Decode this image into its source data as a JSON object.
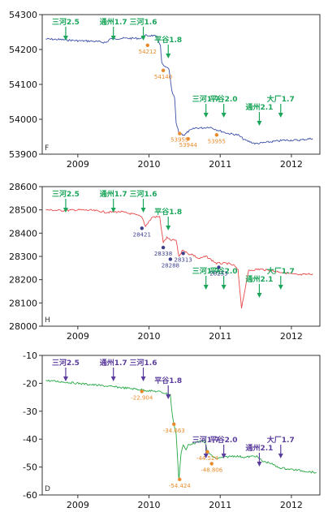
{
  "chart_data": [
    {
      "type": "line",
      "panel_label": "F",
      "ylim": [
        53900,
        54300
      ],
      "yticks": [
        53900,
        54000,
        54100,
        54200,
        54300
      ],
      "xlim": [
        2008.5,
        2012.4
      ],
      "xticks": [
        2009,
        2010,
        2011,
        2012
      ],
      "line_color": "#3c4fa8",
      "event_color": "#1aa55a",
      "marker_color": "#e88a2a",
      "series": [
        {
          "x": [
            2008.55,
            2008.8,
            2009.0,
            2009.2,
            2009.4,
            2009.45,
            2009.6,
            2009.9,
            2009.95,
            2010.05,
            2010.12,
            2010.16,
            2010.18,
            2010.22,
            2010.28,
            2010.32,
            2010.36,
            2010.38,
            2010.42,
            2010.5,
            2010.55,
            2010.65,
            2010.75,
            2010.85,
            2010.95,
            2011.1,
            2011.25,
            2011.35,
            2011.5,
            2011.7,
            2011.9,
            2012.1,
            2012.3
          ],
          "y": [
            54230,
            54228,
            54225,
            54224,
            54220,
            54230,
            54232,
            54232,
            54240,
            54240,
            54235,
            54210,
            54160,
            54150,
            54145,
            54080,
            54060,
            53990,
            53960,
            53955,
            53965,
            53975,
            53975,
            53978,
            53970,
            53960,
            53955,
            53940,
            53930,
            53935,
            53940,
            53940,
            53945
          ]
        }
      ],
      "events": [
        {
          "label": "三河2.5",
          "x": 2008.83
        },
        {
          "label": "通州1.7",
          "x": 2009.5
        },
        {
          "label": "三河1.6",
          "x": 2009.92
        },
        {
          "label": "平谷1.8",
          "x": 2010.27
        },
        {
          "label": "三河1.7",
          "x": 2010.8
        },
        {
          "label": "平谷2.0",
          "x": 2011.05
        },
        {
          "label": "通州2.1",
          "x": 2011.55
        },
        {
          "label": "大厂1.7",
          "x": 2011.85
        }
      ],
      "markers": [
        {
          "label": "54212",
          "x": 2009.98,
          "y": 54212
        },
        {
          "label": "54140",
          "x": 2010.2,
          "y": 54140
        },
        {
          "label": "53959",
          "x": 2010.43,
          "y": 53959
        },
        {
          "label": "53944",
          "x": 2010.55,
          "y": 53944
        },
        {
          "label": "53955",
          "x": 2010.95,
          "y": 53955
        }
      ]
    },
    {
      "type": "line",
      "panel_label": "H",
      "ylim": [
        28000,
        28600
      ],
      "yticks": [
        28000,
        28100,
        28200,
        28300,
        28400,
        28500,
        28600
      ],
      "xlim": [
        2008.5,
        2012.4
      ],
      "xticks": [
        2009,
        2010,
        2011,
        2012
      ],
      "line_color": "#e84a4a",
      "event_color": "#1aa55a",
      "marker_color": "#3c3f8c",
      "series": [
        {
          "x": [
            2008.55,
            2008.8,
            2009.0,
            2009.2,
            2009.4,
            2009.6,
            2009.8,
            2009.9,
            2009.95,
            2010.05,
            2010.15,
            2010.2,
            2010.25,
            2010.3,
            2010.38,
            2010.42,
            2010.48,
            2010.55,
            2010.6,
            2010.7,
            2010.8,
            2010.95,
            2011.1,
            2011.2,
            2011.25,
            2011.3,
            2011.4,
            2011.55,
            2011.7,
            2011.9,
            2012.1,
            2012.3
          ],
          "y": [
            28500,
            28497,
            28500,
            28498,
            28490,
            28492,
            28480,
            28470,
            28430,
            28470,
            28470,
            28360,
            28380,
            28370,
            28370,
            28300,
            28330,
            28310,
            28310,
            28290,
            28300,
            28270,
            28270,
            28260,
            28240,
            28080,
            28240,
            28245,
            28240,
            28230,
            28220,
            28225
          ]
        }
      ],
      "events": [
        {
          "label": "三河2.5",
          "x": 2008.83
        },
        {
          "label": "通州1.7",
          "x": 2009.5
        },
        {
          "label": "三河1.6",
          "x": 2009.92
        },
        {
          "label": "平谷1.8",
          "x": 2010.27
        },
        {
          "label": "三河1.7",
          "x": 2010.8
        },
        {
          "label": "平谷2.0",
          "x": 2011.05
        },
        {
          "label": "通州2.1",
          "x": 2011.55
        },
        {
          "label": "大厂1.7",
          "x": 2011.85
        }
      ],
      "markers": [
        {
          "label": "28421",
          "x": 2009.9,
          "y": 28421
        },
        {
          "label": "28338",
          "x": 2010.2,
          "y": 28338
        },
        {
          "label": "28288",
          "x": 2010.3,
          "y": 28288
        },
        {
          "label": "28313",
          "x": 2010.48,
          "y": 28313
        },
        {
          "label": "28253",
          "x": 2010.98,
          "y": 28253
        }
      ]
    },
    {
      "type": "line",
      "panel_label": "D",
      "ylim": [
        -60,
        -10
      ],
      "yticks": [
        -60,
        -50,
        -40,
        -30,
        -20,
        -10
      ],
      "xlim": [
        2008.5,
        2012.4
      ],
      "xticks": [
        2009,
        2010,
        2011,
        2012
      ],
      "line_color": "#27a844",
      "event_color": "#5a3c9c",
      "marker_color": "#e88a2a",
      "series": [
        {
          "x": [
            2008.55,
            2008.8,
            2009.0,
            2009.2,
            2009.4,
            2009.6,
            2009.8,
            2009.95,
            2010.05,
            2010.15,
            2010.22,
            2010.3,
            2010.32,
            2010.35,
            2010.38,
            2010.42,
            2010.45,
            2010.48,
            2010.52,
            2010.55,
            2010.62,
            2010.7,
            2010.78,
            2010.82,
            2010.88,
            2010.95,
            2011.05,
            2011.2,
            2011.35,
            2011.5,
            2011.6,
            2011.7,
            2011.8,
            2011.9,
            2012.05,
            2012.2,
            2012.35
          ],
          "y": [
            -19,
            -19.5,
            -20,
            -20.5,
            -21,
            -21.5,
            -22,
            -22.5,
            -22.8,
            -23,
            -23.5,
            -24,
            -30,
            -34.6,
            -38,
            -54.5,
            -45,
            -42,
            -44,
            -42,
            -41.5,
            -41,
            -40.5,
            -44.5,
            -46,
            -47,
            -46.5,
            -46,
            -46.5,
            -46,
            -48,
            -48.5,
            -50,
            -50.5,
            -51,
            -51.5,
            -52
          ]
        }
      ],
      "events": [
        {
          "label": "三河2.5",
          "x": 2008.83
        },
        {
          "label": "通州1.7",
          "x": 2009.5
        },
        {
          "label": "三河1.6",
          "x": 2009.92
        },
        {
          "label": "平谷1.8",
          "x": 2010.27
        },
        {
          "label": "三河1.7",
          "x": 2010.8
        },
        {
          "label": "平谷2.0",
          "x": 2011.05
        },
        {
          "label": "通州2.1",
          "x": 2011.55
        },
        {
          "label": "大厂1.7",
          "x": 2011.85
        }
      ],
      "markers": [
        {
          "label": "-22.904",
          "x": 2009.9,
          "y": -22.904
        },
        {
          "label": "-34.663",
          "x": 2010.35,
          "y": -34.663
        },
        {
          "label": "-54.424",
          "x": 2010.43,
          "y": -54.424
        },
        {
          "label": "-44.524",
          "x": 2010.82,
          "y": -44.524
        },
        {
          "label": "-48.806",
          "x": 2010.88,
          "y": -48.806
        }
      ]
    }
  ]
}
